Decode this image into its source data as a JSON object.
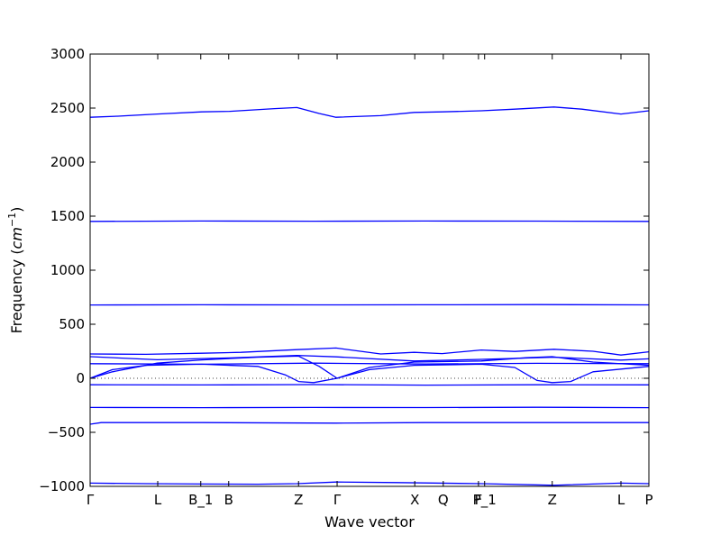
{
  "chart_data": {
    "type": "line",
    "title": "",
    "xlabel": "Wave vector",
    "ylabel_text": "Frequency (",
    "ylabel_unit_base": "cm",
    "ylabel_unit_exp": "−1",
    "ylabel_close": ")",
    "ylim": [
      -1000,
      3000
    ],
    "xlim": [
      0,
      1
    ],
    "grid": false,
    "line_color": "#0000ff",
    "zero_line": true,
    "y_ticks": [
      {
        "value": -1000,
        "label": "−1000"
      },
      {
        "value": -500,
        "label": "−500"
      },
      {
        "value": 0,
        "label": "0"
      },
      {
        "value": 500,
        "label": "500"
      },
      {
        "value": 1000,
        "label": "1000"
      },
      {
        "value": 1500,
        "label": "1500"
      },
      {
        "value": 2000,
        "label": "2000"
      },
      {
        "value": 2500,
        "label": "2500"
      },
      {
        "value": 3000,
        "label": "3000"
      }
    ],
    "x_ticks": [
      {
        "x": 0.0,
        "label": "Γ"
      },
      {
        "x": 0.121,
        "label": "L"
      },
      {
        "x": 0.198,
        "label": "B_1"
      },
      {
        "x": 0.248,
        "label": "B"
      },
      {
        "x": 0.373,
        "label": "Z"
      },
      {
        "x": 0.442,
        "label": "Γ"
      },
      {
        "x": 0.581,
        "label": "X"
      },
      {
        "x": 0.632,
        "label": "Q"
      },
      {
        "x": 0.695,
        "label": "F"
      },
      {
        "x": 0.706,
        "label": "P_1"
      },
      {
        "x": 0.827,
        "label": "Z"
      },
      {
        "x": 0.95,
        "label": "L"
      },
      {
        "x": 1.0,
        "label": "P"
      }
    ],
    "series": [
      {
        "x": [
          0,
          0.05,
          0.12,
          0.2,
          0.25,
          0.33,
          0.37,
          0.41,
          0.44,
          0.52,
          0.58,
          0.63,
          0.7,
          0.76,
          0.83,
          0.88,
          0.95,
          1.0
        ],
        "y": [
          2415,
          2425,
          2445,
          2465,
          2470,
          2495,
          2505,
          2450,
          2415,
          2430,
          2460,
          2465,
          2475,
          2490,
          2510,
          2490,
          2445,
          2475
        ]
      },
      {
        "x": [
          0,
          0.2,
          0.4,
          0.6,
          0.8,
          1.0
        ],
        "y": [
          1452,
          1455,
          1453,
          1455,
          1454,
          1452
        ]
      },
      {
        "x": [
          0,
          0.2,
          0.4,
          0.6,
          0.8,
          1.0
        ],
        "y": [
          678,
          680,
          679,
          680,
          682,
          679
        ]
      },
      {
        "x": [
          0,
          0.1,
          0.2,
          0.27,
          0.37,
          0.44,
          0.52,
          0.58,
          0.63,
          0.7,
          0.76,
          0.83,
          0.9,
          0.95,
          1.0
        ],
        "y": [
          225,
          222,
          232,
          240,
          265,
          280,
          225,
          240,
          228,
          262,
          248,
          268,
          250,
          215,
          245
        ]
      },
      {
        "x": [
          0,
          0.12,
          0.25,
          0.37,
          0.44,
          0.58,
          0.7,
          0.83,
          0.95,
          1.0
        ],
        "y": [
          200,
          172,
          188,
          212,
          198,
          160,
          175,
          195,
          168,
          180
        ]
      },
      {
        "x": [
          0,
          0.2,
          0.4,
          0.6,
          0.8,
          1.0
        ],
        "y": [
          135,
          130,
          140,
          132,
          138,
          135
        ]
      },
      {
        "x": [
          0,
          0.04,
          0.1,
          0.2,
          0.3,
          0.35,
          0.373,
          0.4,
          0.442
        ],
        "y": [
          0,
          80,
          120,
          130,
          110,
          30,
          -30,
          -40,
          0
        ]
      },
      {
        "x": [
          0,
          0.04,
          0.12,
          0.2,
          0.3,
          0.373,
          0.41,
          0.442
        ],
        "y": [
          0,
          60,
          140,
          170,
          195,
          205,
          110,
          0
        ]
      },
      {
        "x": [
          0.442,
          0.5,
          0.58,
          0.7,
          0.76,
          0.8,
          0.827,
          0.86,
          0.9,
          1.0
        ],
        "y": [
          0,
          80,
          120,
          130,
          100,
          -20,
          -40,
          -30,
          60,
          110
        ]
      },
      {
        "x": [
          0.442,
          0.5,
          0.58,
          0.7,
          0.78,
          0.827,
          0.9,
          1.0
        ],
        "y": [
          0,
          100,
          150,
          160,
          190,
          200,
          150,
          120
        ]
      },
      {
        "x": [
          0,
          0.2,
          0.4,
          0.6,
          0.8,
          1.0
        ],
        "y": [
          -60,
          -62,
          -58,
          -63,
          -60,
          -61
        ]
      },
      {
        "x": [
          0,
          0.2,
          0.4,
          0.6,
          0.8,
          1.0
        ],
        "y": [
          -270,
          -272,
          -270,
          -271,
          -268,
          -272
        ]
      },
      {
        "x": [
          0,
          0.02,
          0.2,
          0.44,
          0.6,
          0.8,
          1.0
        ],
        "y": [
          -425,
          -410,
          -410,
          -415,
          -410,
          -410,
          -410
        ]
      },
      {
        "x": [
          0,
          0.1,
          0.2,
          0.3,
          0.37,
          0.44,
          0.55,
          0.7,
          0.83,
          0.95,
          1.0
        ],
        "y": [
          -970,
          -975,
          -978,
          -980,
          -975,
          -960,
          -965,
          -975,
          -990,
          -970,
          -975
        ]
      }
    ]
  }
}
